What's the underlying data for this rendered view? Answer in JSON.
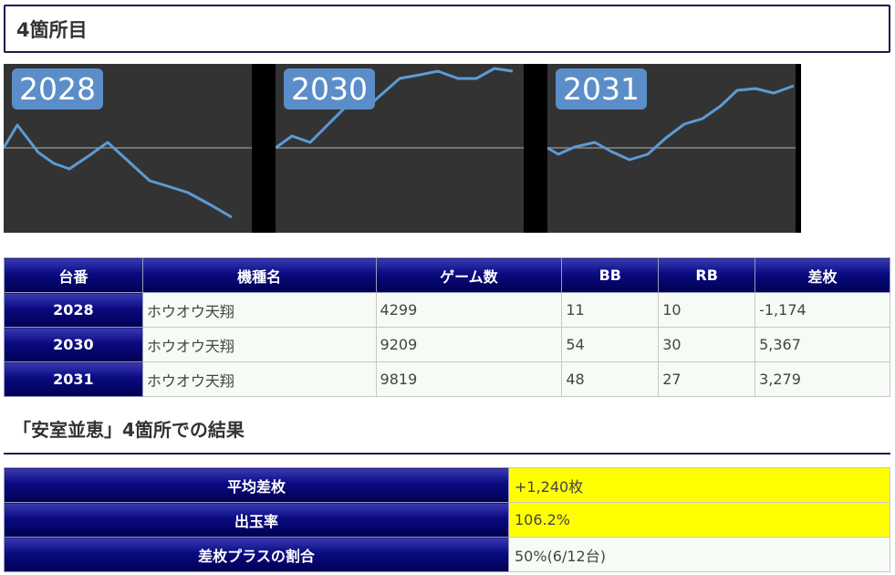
{
  "section_title": "4箇所目",
  "graphs": [
    {
      "badge": "2028"
    },
    {
      "badge": "2030"
    },
    {
      "badge": "2031"
    }
  ],
  "table": {
    "headers": [
      "台番",
      "機種名",
      "ゲーム数",
      "BB",
      "RB",
      "差枚"
    ],
    "rows": [
      {
        "id": "2028",
        "machine": "ホウオウ天翔",
        "games": "4299",
        "bb": "11",
        "rb": "10",
        "diff": "-1,174",
        "negative": true
      },
      {
        "id": "2030",
        "machine": "ホウオウ天翔",
        "games": "9209",
        "bb": "54",
        "rb": "30",
        "diff": "5,367",
        "negative": false
      },
      {
        "id": "2031",
        "machine": "ホウオウ天翔",
        "games": "9819",
        "bb": "48",
        "rb": "27",
        "diff": "3,279",
        "negative": false
      }
    ]
  },
  "result": {
    "heading": "「安室並恵」4箇所での結果",
    "rows": [
      {
        "label": "平均差枚",
        "value": "+1,240枚",
        "highlight": true
      },
      {
        "label": "出玉率",
        "value": "106.2%",
        "highlight": true
      },
      {
        "label": "差枚プラスの割合",
        "value": "50%(6/12台)",
        "highlight": false
      }
    ]
  },
  "colors": {
    "header_navy": "#0a0a80",
    "graph_bg": "#333333",
    "graph_line": "#5b9bd5",
    "badge": "#5b8ec9",
    "negative": "#e03030",
    "highlight": "#ffff00"
  }
}
